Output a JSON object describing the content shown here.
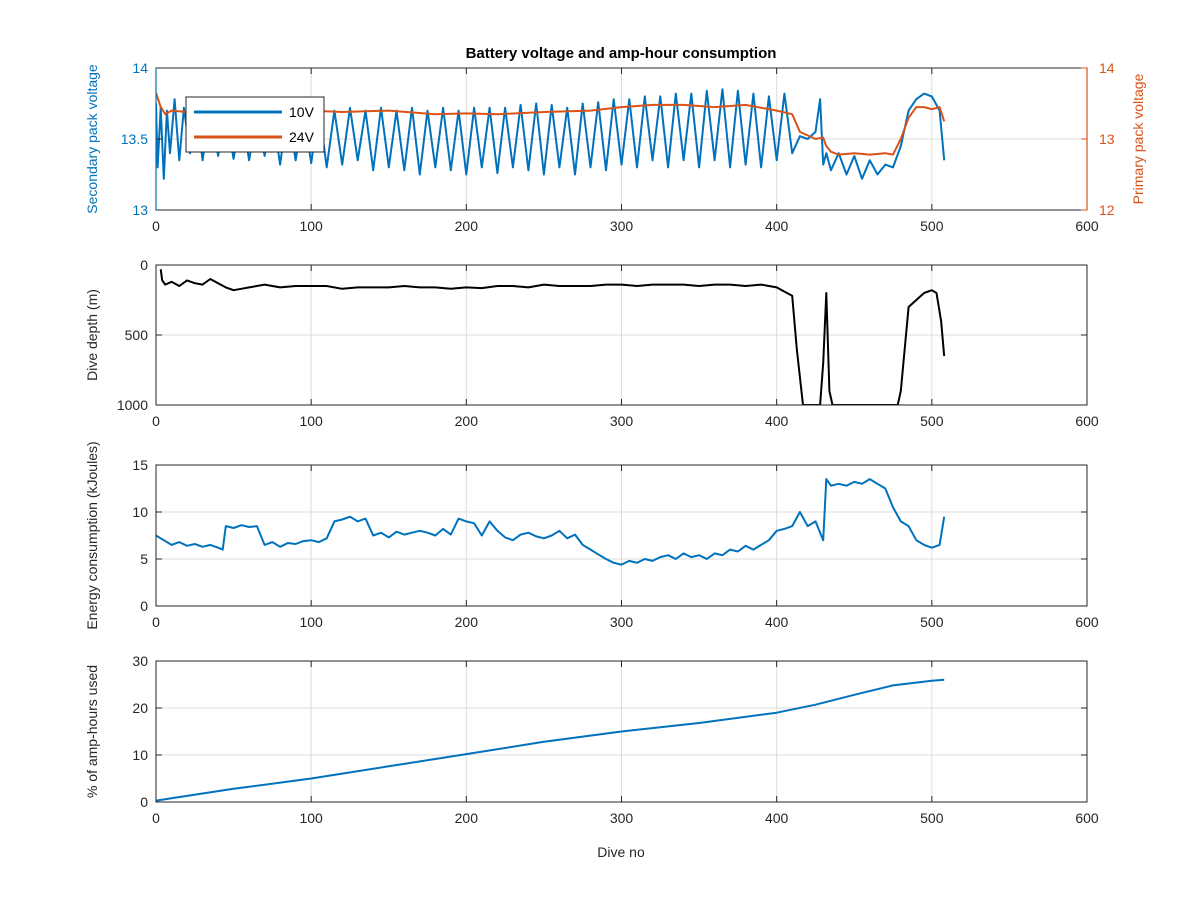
{
  "figure": {
    "title": "Battery voltage and amp-hour consumption",
    "xlabel": "Dive no"
  },
  "colors": {
    "series_10v": "#0072BD",
    "series_24v": "#D95319",
    "depth": "#000000",
    "grid": "#dcdcdc",
    "axis": "#262626"
  },
  "chart_data": [
    {
      "type": "line",
      "title": "Battery voltage and amp-hour consumption",
      "xlabel": "",
      "ylabel": "Secondary pack voltage",
      "ylabel_right": "Primary pack voltage",
      "xlim": [
        0,
        600
      ],
      "ylim": [
        13,
        14
      ],
      "ylim_right": [
        12,
        14
      ],
      "xticks": [
        0,
        100,
        200,
        300,
        400,
        500,
        600
      ],
      "yticks": [
        13,
        13.5,
        14
      ],
      "yticks_right": [
        12,
        13,
        14
      ],
      "grid": true,
      "legend": "top-left",
      "series": [
        {
          "name": "10V",
          "axis": "left",
          "x": [
            0,
            1,
            3,
            5,
            7,
            9,
            12,
            15,
            18,
            22,
            26,
            30,
            35,
            40,
            45,
            50,
            55,
            60,
            65,
            70,
            75,
            80,
            85,
            90,
            95,
            100,
            105,
            110,
            115,
            120,
            125,
            130,
            135,
            140,
            145,
            150,
            155,
            160,
            165,
            170,
            175,
            180,
            185,
            190,
            195,
            200,
            205,
            210,
            215,
            220,
            225,
            230,
            235,
            240,
            245,
            250,
            255,
            260,
            265,
            270,
            275,
            280,
            285,
            290,
            295,
            300,
            305,
            310,
            315,
            320,
            325,
            330,
            335,
            340,
            345,
            350,
            355,
            360,
            365,
            370,
            375,
            380,
            385,
            390,
            395,
            400,
            405,
            410,
            415,
            420,
            425,
            428,
            430,
            432,
            435,
            440,
            445,
            450,
            455,
            460,
            465,
            470,
            475,
            480,
            485,
            490,
            495,
            500,
            505,
            508
          ],
          "y": [
            13.75,
            13.3,
            13.72,
            13.22,
            13.7,
            13.4,
            13.78,
            13.35,
            13.72,
            13.4,
            13.7,
            13.35,
            13.72,
            13.38,
            13.68,
            13.36,
            13.7,
            13.35,
            13.68,
            13.38,
            13.7,
            13.32,
            13.72,
            13.35,
            13.7,
            13.33,
            13.72,
            13.3,
            13.7,
            13.32,
            13.72,
            13.35,
            13.7,
            13.28,
            13.72,
            13.3,
            13.7,
            13.28,
            13.72,
            13.25,
            13.7,
            13.3,
            13.72,
            13.28,
            13.7,
            13.25,
            13.72,
            13.3,
            13.72,
            13.26,
            13.72,
            13.3,
            13.74,
            13.28,
            13.75,
            13.25,
            13.74,
            13.3,
            13.72,
            13.25,
            13.75,
            13.3,
            13.76,
            13.28,
            13.78,
            13.32,
            13.78,
            13.3,
            13.8,
            13.35,
            13.8,
            13.3,
            13.82,
            13.35,
            13.82,
            13.3,
            13.84,
            13.35,
            13.85,
            13.3,
            13.84,
            13.32,
            13.82,
            13.3,
            13.8,
            13.35,
            13.82,
            13.4,
            13.52,
            13.5,
            13.55,
            13.78,
            13.32,
            13.4,
            13.28,
            13.4,
            13.25,
            13.38,
            13.22,
            13.35,
            13.25,
            13.32,
            13.3,
            13.45,
            13.7,
            13.78,
            13.82,
            13.8,
            13.7,
            13.35
          ]
        },
        {
          "name": "24V",
          "axis": "right",
          "x": [
            0,
            3,
            6,
            10,
            20,
            30,
            40,
            50,
            60,
            80,
            100,
            120,
            150,
            180,
            200,
            220,
            250,
            280,
            300,
            320,
            340,
            360,
            380,
            400,
            410,
            415,
            420,
            425,
            430,
            432,
            435,
            440,
            450,
            460,
            470,
            475,
            480,
            485,
            490,
            495,
            500,
            505,
            508
          ],
          "y": [
            13.65,
            13.45,
            13.35,
            13.4,
            13.38,
            13.4,
            13.38,
            13.4,
            13.42,
            13.38,
            13.4,
            13.38,
            13.4,
            13.35,
            13.36,
            13.35,
            13.38,
            13.4,
            13.45,
            13.48,
            13.48,
            13.45,
            13.48,
            13.4,
            13.35,
            13.1,
            13.05,
            13.0,
            13.02,
            12.9,
            12.82,
            12.78,
            12.8,
            12.78,
            12.8,
            12.78,
            13.0,
            13.3,
            13.45,
            13.45,
            13.42,
            13.45,
            13.25
          ]
        }
      ]
    },
    {
      "type": "line",
      "xlabel": "",
      "ylabel": "Dive depth (m)",
      "xlim": [
        0,
        600
      ],
      "ylim": [
        0,
        1000
      ],
      "y_reversed": true,
      "xticks": [
        0,
        100,
        200,
        300,
        400,
        500,
        600
      ],
      "yticks": [
        0,
        500,
        1000
      ],
      "grid": true,
      "series": [
        {
          "x": [
            3,
            4,
            6,
            10,
            15,
            20,
            25,
            30,
            35,
            40,
            45,
            50,
            55,
            60,
            70,
            80,
            90,
            100,
            110,
            120,
            130,
            140,
            150,
            160,
            170,
            180,
            190,
            200,
            210,
            220,
            230,
            240,
            250,
            260,
            270,
            280,
            290,
            300,
            310,
            320,
            330,
            340,
            350,
            360,
            370,
            380,
            390,
            395,
            400,
            405,
            410,
            413,
            417,
            420,
            425,
            428,
            430,
            432,
            434,
            436,
            440,
            450,
            460,
            470,
            475,
            478,
            480,
            485,
            490,
            495,
            500,
            503,
            506,
            508
          ],
          "y": [
            30,
            110,
            140,
            120,
            150,
            110,
            130,
            140,
            100,
            130,
            160,
            180,
            170,
            160,
            140,
            160,
            150,
            150,
            150,
            170,
            160,
            160,
            160,
            150,
            160,
            160,
            170,
            160,
            165,
            150,
            150,
            160,
            140,
            150,
            150,
            150,
            140,
            140,
            150,
            140,
            140,
            140,
            150,
            140,
            140,
            150,
            140,
            150,
            160,
            190,
            220,
            600,
            1000,
            1000,
            1000,
            1000,
            700,
            200,
            900,
            1000,
            1000,
            1000,
            1000,
            1000,
            1000,
            1000,
            900,
            300,
            250,
            200,
            180,
            200,
            400,
            650
          ]
        }
      ]
    },
    {
      "type": "line",
      "xlabel": "",
      "ylabel": "Energy consumption (kJoules)",
      "xlim": [
        0,
        600
      ],
      "ylim": [
        0,
        15
      ],
      "xticks": [
        0,
        100,
        200,
        300,
        400,
        500,
        600
      ],
      "yticks": [
        0,
        5,
        10,
        15
      ],
      "grid": true,
      "series": [
        {
          "x": [
            0,
            5,
            10,
            15,
            20,
            25,
            30,
            35,
            40,
            43,
            45,
            50,
            55,
            60,
            65,
            70,
            75,
            80,
            85,
            90,
            95,
            100,
            105,
            110,
            115,
            120,
            125,
            130,
            135,
            140,
            145,
            150,
            155,
            160,
            165,
            170,
            175,
            180,
            185,
            190,
            195,
            200,
            205,
            210,
            215,
            220,
            225,
            230,
            235,
            240,
            245,
            250,
            255,
            260,
            265,
            270,
            275,
            280,
            285,
            290,
            295,
            300,
            305,
            310,
            315,
            320,
            325,
            330,
            335,
            340,
            345,
            350,
            355,
            360,
            365,
            370,
            375,
            380,
            385,
            390,
            395,
            400,
            405,
            410,
            415,
            420,
            425,
            430,
            432,
            435,
            440,
            445,
            450,
            455,
            460,
            465,
            470,
            475,
            480,
            485,
            490,
            495,
            500,
            505,
            508
          ],
          "y": [
            7.5,
            7.0,
            6.5,
            6.8,
            6.4,
            6.6,
            6.3,
            6.5,
            6.2,
            6.0,
            8.5,
            8.3,
            8.6,
            8.4,
            8.5,
            6.5,
            6.8,
            6.3,
            6.7,
            6.6,
            6.9,
            7.0,
            6.8,
            7.2,
            9.0,
            9.2,
            9.5,
            9.0,
            9.3,
            7.5,
            7.8,
            7.3,
            7.9,
            7.6,
            7.8,
            8.0,
            7.8,
            7.5,
            8.2,
            7.6,
            9.3,
            9.0,
            8.8,
            7.5,
            9.0,
            8.0,
            7.3,
            7.0,
            7.6,
            7.8,
            7.4,
            7.2,
            7.5,
            8.0,
            7.2,
            7.6,
            6.5,
            6.0,
            5.5,
            5.0,
            4.6,
            4.4,
            4.8,
            4.6,
            5.0,
            4.8,
            5.2,
            5.4,
            5.0,
            5.6,
            5.2,
            5.4,
            5.0,
            5.6,
            5.4,
            6.0,
            5.8,
            6.4,
            6.0,
            6.5,
            7.0,
            8.0,
            8.2,
            8.5,
            10.0,
            8.5,
            9.0,
            7.0,
            13.5,
            12.8,
            13.0,
            12.8,
            13.2,
            13.0,
            13.5,
            13.0,
            12.5,
            10.5,
            9.0,
            8.5,
            7.0,
            6.5,
            6.2,
            6.5,
            9.5
          ]
        }
      ]
    },
    {
      "type": "line",
      "xlabel": "Dive no",
      "ylabel": "% of amp-hours used",
      "xlim": [
        0,
        600
      ],
      "ylim": [
        0,
        30
      ],
      "xticks": [
        0,
        100,
        200,
        300,
        400,
        500,
        600
      ],
      "yticks": [
        0,
        10,
        20,
        30
      ],
      "grid": true,
      "series": [
        {
          "x": [
            0,
            20,
            50,
            100,
            150,
            200,
            250,
            300,
            350,
            400,
            425,
            450,
            475,
            500,
            508
          ],
          "y": [
            0.3,
            1.3,
            2.8,
            5.0,
            7.6,
            10.2,
            12.8,
            15.0,
            16.8,
            19.0,
            20.7,
            22.8,
            24.8,
            25.8,
            26.0
          ]
        }
      ]
    }
  ]
}
